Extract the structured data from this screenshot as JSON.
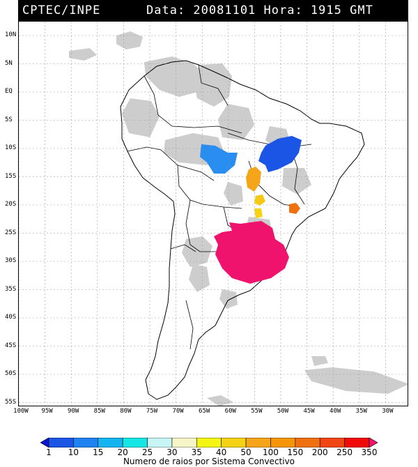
{
  "header": {
    "source": "CPTEC/INPE",
    "datetime": "Data: 20081101 Hora: 1915 GMT"
  },
  "map": {
    "lat_labels": [
      "10N",
      "5N",
      "EQ",
      "5S",
      "10S",
      "15S",
      "20S",
      "25S",
      "30S",
      "35S",
      "40S",
      "45S",
      "50S",
      "55S"
    ],
    "lon_labels": [
      "100W",
      "95W",
      "90W",
      "85W",
      "80W",
      "75W",
      "70W",
      "65W",
      "60W",
      "55W",
      "50W",
      "45W",
      "40W",
      "35W",
      "30W"
    ],
    "colors": {
      "cloud": "#c8c8c8",
      "coast": "#000000",
      "grid": "#9a9a9a",
      "blue": "#1a55e6",
      "light_blue": "#2a8ef0",
      "orange": "#f5a51a",
      "dark_orange": "#f07010",
      "magenta": "#f0136e"
    },
    "convective_systems": [
      {
        "name": "central-brazil-cluster-east",
        "color_class": "blue"
      },
      {
        "name": "central-brazil-cluster-west",
        "color_class": "light_blue"
      },
      {
        "name": "mato-grosso-cluster",
        "color_class": "orange"
      },
      {
        "name": "southeast-brazil-cell",
        "color_class": "dark_orange"
      },
      {
        "name": "south-brazil-complex",
        "color_class": "magenta"
      }
    ]
  },
  "colorbar": {
    "labels": [
      "1",
      "10",
      "15",
      "20",
      "25",
      "30",
      "35",
      "40",
      "50",
      "100",
      "150",
      "200",
      "250",
      "350"
    ],
    "colors": [
      "#0a14d2",
      "#1a55e6",
      "#1e82f0",
      "#14b4f0",
      "#14e6e6",
      "#c8f5f5",
      "#f5f5c8",
      "#f5f514",
      "#f5d214",
      "#f5a51a",
      "#f5960a",
      "#f07010",
      "#f04614",
      "#f00a0a",
      "#f0136e"
    ],
    "title": "Numero de raios por Sistema Convectivo"
  }
}
